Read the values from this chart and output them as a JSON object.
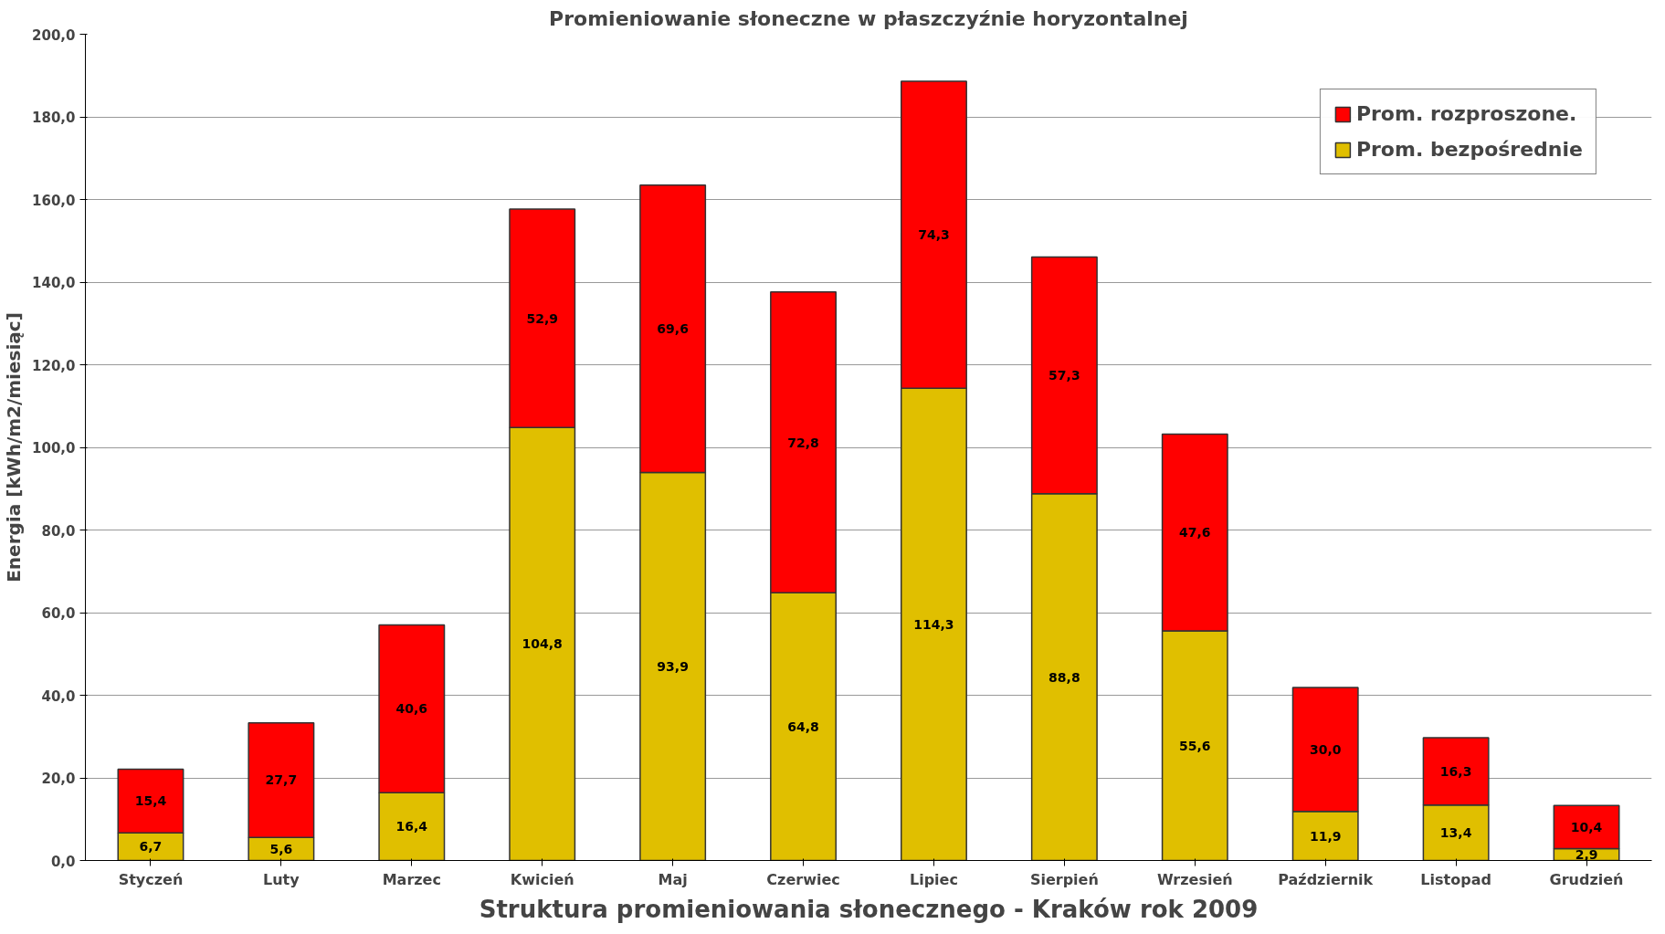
{
  "chart_data": {
    "type": "bar",
    "stacked": true,
    "title": "Promieniowanie słoneczne w płaszczyźnie horyzontalnej",
    "xlabel": "Struktura promieniowania słonecznego - Kraków rok 2009",
    "ylabel": "Energia [kWh/m2/miesiąc]",
    "categories": [
      "Styczeń",
      "Luty",
      "Marzec",
      "Kwicień",
      "Maj",
      "Czerwiec",
      "Lipiec",
      "Sierpień",
      "Wrzesień",
      "Październik",
      "Listopad",
      "Grudzień"
    ],
    "series": [
      {
        "name": "Prom. bezpośrednie",
        "color": "#e0bf00",
        "values": [
          6.7,
          5.6,
          16.4,
          104.8,
          93.9,
          64.8,
          114.3,
          88.8,
          55.6,
          11.9,
          13.4,
          2.9
        ],
        "value_labels": [
          "6,7",
          "5,6",
          "16,4",
          "104,8",
          "93,9",
          "64,8",
          "114,3",
          "88,8",
          "55,6",
          "11,9",
          "13,4",
          "2,9"
        ]
      },
      {
        "name": "Prom. rozproszone.",
        "color": "#ff0000",
        "values": [
          15.4,
          27.7,
          40.6,
          52.9,
          69.6,
          72.8,
          74.3,
          57.3,
          47.6,
          30.0,
          16.3,
          10.4
        ],
        "value_labels": [
          "15,4",
          "27,7",
          "40,6",
          "52,9",
          "69,6",
          "72,8",
          "74,3",
          "57,3",
          "47,6",
          "30,0",
          "16,3",
          "10,4"
        ]
      }
    ],
    "ylim": [
      0,
      200
    ],
    "yticks": [
      {
        "value": 0,
        "label": "0,0"
      },
      {
        "value": 20,
        "label": "20,0"
      },
      {
        "value": 40,
        "label": "40,0"
      },
      {
        "value": 60,
        "label": "60,0"
      },
      {
        "value": 80,
        "label": "80,0"
      },
      {
        "value": 100,
        "label": "100,0"
      },
      {
        "value": 120,
        "label": "120,0"
      },
      {
        "value": 140,
        "label": "140,0"
      },
      {
        "value": 160,
        "label": "160,0"
      },
      {
        "value": 180,
        "label": "180,0"
      },
      {
        "value": 200,
        "label": "200,0"
      }
    ],
    "grid": "y",
    "legend": "top right"
  }
}
